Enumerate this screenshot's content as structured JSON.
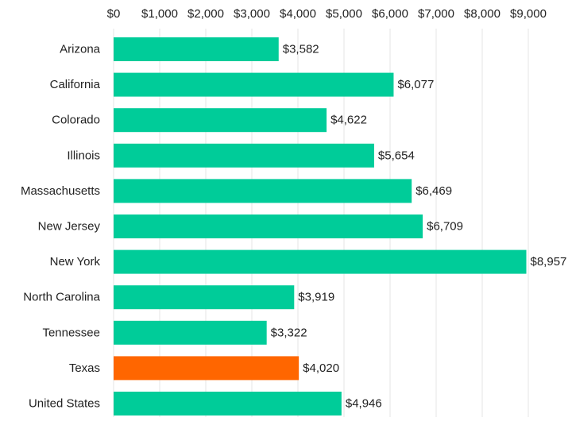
{
  "chart_data": {
    "type": "bar",
    "orientation": "horizontal",
    "categories": [
      "Arizona",
      "California",
      "Colorado",
      "Illinois",
      "Massachusetts",
      "New Jersey",
      "New York",
      "North Carolina",
      "Tennessee",
      "Texas",
      "United States"
    ],
    "values": [
      3582,
      6077,
      4622,
      5654,
      6469,
      6709,
      8957,
      3919,
      3322,
      4020,
      4946
    ],
    "value_labels": [
      "$3,582",
      "$6,077",
      "$4,622",
      "$5,654",
      "$6,469",
      "$6,709",
      "$8,957",
      "$3,919",
      "$3,322",
      "$4,020",
      "$4,946"
    ],
    "xlim": [
      0,
      9000
    ],
    "x_ticks": [
      0,
      1000,
      2000,
      3000,
      4000,
      5000,
      6000,
      7000,
      8000,
      9000
    ],
    "x_tick_labels": [
      "$0",
      "$1,000",
      "$2,000",
      "$3,000",
      "$4,000",
      "$5,000",
      "$6,000",
      "$7,000",
      "$8,000",
      "$9,000"
    ],
    "x_axis_position": "top",
    "grid": "vertical",
    "legend": "none",
    "title": "",
    "xlabel": "",
    "ylabel": "",
    "colors": {
      "default_bar": "#00CC99",
      "highlight_bar": "#FF6600"
    },
    "highlight_category": "Texas"
  }
}
